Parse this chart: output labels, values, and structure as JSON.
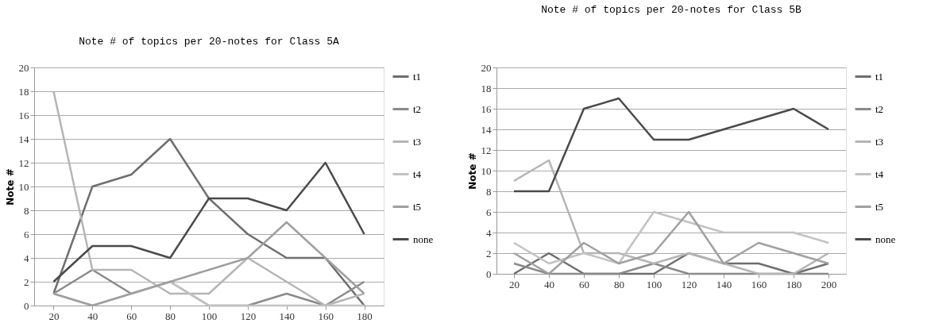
{
  "chart_data": [
    {
      "type": "line",
      "title": "Note # of topics per 20-notes for Class 5A",
      "ylabel": "Note #",
      "categories": [
        "20",
        "40",
        "60",
        "80",
        "100",
        "120",
        "140",
        "160",
        "180"
      ],
      "series": [
        {
          "name": "t1",
          "color": "#6e6e6e",
          "values": [
            1,
            10,
            11,
            14,
            9,
            6,
            4,
            4,
            0
          ]
        },
        {
          "name": "t2",
          "color": "#8a8a8a",
          "values": [
            1,
            3,
            1,
            2,
            0,
            0,
            1,
            0,
            2
          ]
        },
        {
          "name": "t3",
          "color": "#b5b5b5",
          "values": [
            18,
            3,
            3,
            1,
            1,
            4,
            2,
            0,
            1
          ]
        },
        {
          "name": "t4",
          "color": "#c2c2c2",
          "values": [
            1,
            0,
            1,
            2,
            0,
            0,
            0,
            0,
            0
          ]
        },
        {
          "name": "t5",
          "color": "#a0a0a0",
          "values": [
            1,
            0,
            1,
            2,
            3,
            4,
            7,
            4,
            1
          ]
        },
        {
          "name": "none",
          "color": "#4a4a4a",
          "values": [
            2,
            5,
            5,
            4,
            9,
            9,
            8,
            12,
            6
          ]
        }
      ],
      "ylim": [
        0,
        20
      ],
      "yticks": [
        0,
        2,
        4,
        6,
        8,
        10,
        12,
        14,
        16,
        18,
        20
      ],
      "grid": "y",
      "legend": "right",
      "marker": "none",
      "line_style": "solid"
    },
    {
      "type": "line",
      "title": "Note # of topics per 20-notes for Class 5B",
      "ylabel": "Note #",
      "categories": [
        "20",
        "40",
        "60",
        "80",
        "100",
        "120",
        "140",
        "160",
        "180",
        "200"
      ],
      "series": [
        {
          "name": "t1",
          "color": "#6e6e6e",
          "values": [
            0,
            2,
            0,
            0,
            0,
            2,
            1,
            1,
            0,
            1
          ]
        },
        {
          "name": "t2",
          "color": "#8a8a8a",
          "values": [
            1,
            0,
            0,
            0,
            1,
            0,
            0,
            0,
            0,
            0
          ]
        },
        {
          "name": "t3",
          "color": "#b5b5b5",
          "values": [
            9,
            11,
            2,
            2,
            1,
            2,
            1,
            0,
            0,
            2
          ]
        },
        {
          "name": "t4",
          "color": "#c2c2c2",
          "values": [
            3,
            1,
            2,
            1,
            6,
            5,
            4,
            4,
            4,
            3
          ]
        },
        {
          "name": "t5",
          "color": "#a0a0a0",
          "values": [
            2,
            0,
            3,
            1,
            2,
            6,
            1,
            3,
            2,
            1
          ]
        },
        {
          "name": "none",
          "color": "#4a4a4a",
          "values": [
            8,
            8,
            16,
            17,
            13,
            13,
            14,
            15,
            16,
            14
          ]
        }
      ],
      "ylim": [
        0,
        20
      ],
      "yticks": [
        0,
        2,
        4,
        6,
        8,
        10,
        12,
        14,
        16,
        18,
        20
      ],
      "grid": "y",
      "legend": "top-right",
      "marker": "none",
      "line_style": "solid"
    }
  ]
}
